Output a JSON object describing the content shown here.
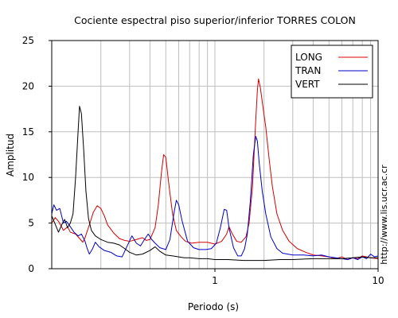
{
  "chart_data": {
    "type": "line",
    "title": "Cociente espectral piso superior/inferior  TORRES COLON",
    "xlabel": "Periodo (s)",
    "ylabel": "Amplitud",
    "x_scale": "log",
    "xlim": [
      0.1,
      10
    ],
    "ylim": [
      0,
      25
    ],
    "x_ticks": [
      {
        "value": 1,
        "label": "1"
      },
      {
        "value": 10,
        "label": "10"
      }
    ],
    "y_ticks": [
      {
        "value": 0,
        "label": "0"
      },
      {
        "value": 5,
        "label": "5"
      },
      {
        "value": 10,
        "label": "10"
      },
      {
        "value": 15,
        "label": "15"
      },
      {
        "value": 20,
        "label": "20"
      },
      {
        "value": 25,
        "label": "25"
      }
    ],
    "grid": true,
    "legend_position": "top-right",
    "side_note": "http://www.lis.ucr.ac.cr",
    "series": [
      {
        "name": "LONG",
        "color": "#d40000",
        "points": [
          [
            0.1,
            5.0
          ],
          [
            0.105,
            5.6
          ],
          [
            0.11,
            5.2
          ],
          [
            0.118,
            4.2
          ],
          [
            0.125,
            4.6
          ],
          [
            0.13,
            4.0
          ],
          [
            0.14,
            3.8
          ],
          [
            0.15,
            3.2
          ],
          [
            0.155,
            2.9
          ],
          [
            0.16,
            3.4
          ],
          [
            0.17,
            4.8
          ],
          [
            0.18,
            6.2
          ],
          [
            0.19,
            6.9
          ],
          [
            0.2,
            6.6
          ],
          [
            0.21,
            5.8
          ],
          [
            0.22,
            4.8
          ],
          [
            0.24,
            3.9
          ],
          [
            0.26,
            3.3
          ],
          [
            0.28,
            3.1
          ],
          [
            0.3,
            3.0
          ],
          [
            0.33,
            3.2
          ],
          [
            0.36,
            3.4
          ],
          [
            0.38,
            3.1
          ],
          [
            0.4,
            3.2
          ],
          [
            0.43,
            4.5
          ],
          [
            0.45,
            7.0
          ],
          [
            0.47,
            10.5
          ],
          [
            0.485,
            12.5
          ],
          [
            0.5,
            12.2
          ],
          [
            0.52,
            9.5
          ],
          [
            0.55,
            6.0
          ],
          [
            0.58,
            4.2
          ],
          [
            0.62,
            3.5
          ],
          [
            0.66,
            3.0
          ],
          [
            0.72,
            2.8
          ],
          [
            0.8,
            2.9
          ],
          [
            0.9,
            2.9
          ],
          [
            1.0,
            2.7
          ],
          [
            1.1,
            3.0
          ],
          [
            1.18,
            3.8
          ],
          [
            1.22,
            4.6
          ],
          [
            1.28,
            3.8
          ],
          [
            1.36,
            3.0
          ],
          [
            1.45,
            2.9
          ],
          [
            1.55,
            3.5
          ],
          [
            1.62,
            5.0
          ],
          [
            1.7,
            9.0
          ],
          [
            1.77,
            15.5
          ],
          [
            1.82,
            19.5
          ],
          [
            1.85,
            20.8
          ],
          [
            1.9,
            19.8
          ],
          [
            1.96,
            18.0
          ],
          [
            2.05,
            15.5
          ],
          [
            2.15,
            12.0
          ],
          [
            2.25,
            9.0
          ],
          [
            2.4,
            6.0
          ],
          [
            2.6,
            4.2
          ],
          [
            2.85,
            3.0
          ],
          [
            3.2,
            2.2
          ],
          [
            3.6,
            1.8
          ],
          [
            4.0,
            1.5
          ],
          [
            4.5,
            1.4
          ],
          [
            5.0,
            1.3
          ],
          [
            5.5,
            1.1
          ],
          [
            6.0,
            1.3
          ],
          [
            6.5,
            1.0
          ],
          [
            7.0,
            1.2
          ],
          [
            7.5,
            1.1
          ],
          [
            8.0,
            1.4
          ],
          [
            9.0,
            1.2
          ],
          [
            10.0,
            1.1
          ]
        ]
      },
      {
        "name": "TRAN",
        "color": "#0000c8",
        "points": [
          [
            0.1,
            6.0
          ],
          [
            0.103,
            7.0
          ],
          [
            0.107,
            6.4
          ],
          [
            0.112,
            6.6
          ],
          [
            0.118,
            5.0
          ],
          [
            0.123,
            5.2
          ],
          [
            0.13,
            4.6
          ],
          [
            0.137,
            4.0
          ],
          [
            0.145,
            3.6
          ],
          [
            0.152,
            3.8
          ],
          [
            0.16,
            3.0
          ],
          [
            0.165,
            2.2
          ],
          [
            0.17,
            1.6
          ],
          [
            0.178,
            2.2
          ],
          [
            0.185,
            2.9
          ],
          [
            0.195,
            2.4
          ],
          [
            0.21,
            2.0
          ],
          [
            0.23,
            1.8
          ],
          [
            0.25,
            1.4
          ],
          [
            0.27,
            1.3
          ],
          [
            0.29,
            2.5
          ],
          [
            0.31,
            3.6
          ],
          [
            0.33,
            2.8
          ],
          [
            0.35,
            2.5
          ],
          [
            0.37,
            3.2
          ],
          [
            0.39,
            3.8
          ],
          [
            0.41,
            3.2
          ],
          [
            0.43,
            2.8
          ],
          [
            0.46,
            2.3
          ],
          [
            0.5,
            2.1
          ],
          [
            0.53,
            3.2
          ],
          [
            0.56,
            6.0
          ],
          [
            0.58,
            7.5
          ],
          [
            0.6,
            7.0
          ],
          [
            0.63,
            5.2
          ],
          [
            0.68,
            3.0
          ],
          [
            0.74,
            2.3
          ],
          [
            0.8,
            2.1
          ],
          [
            0.88,
            2.1
          ],
          [
            0.95,
            2.2
          ],
          [
            1.02,
            2.8
          ],
          [
            1.08,
            4.5
          ],
          [
            1.14,
            6.5
          ],
          [
            1.18,
            6.4
          ],
          [
            1.22,
            4.5
          ],
          [
            1.3,
            2.3
          ],
          [
            1.38,
            1.4
          ],
          [
            1.45,
            1.4
          ],
          [
            1.52,
            2.2
          ],
          [
            1.58,
            3.8
          ],
          [
            1.65,
            7.5
          ],
          [
            1.72,
            12.5
          ],
          [
            1.78,
            14.5
          ],
          [
            1.82,
            14.0
          ],
          [
            1.87,
            11.5
          ],
          [
            1.95,
            8.5
          ],
          [
            2.05,
            6.0
          ],
          [
            2.2,
            3.5
          ],
          [
            2.4,
            2.2
          ],
          [
            2.6,
            1.7
          ],
          [
            3.0,
            1.5
          ],
          [
            3.5,
            1.5
          ],
          [
            4.0,
            1.4
          ],
          [
            4.5,
            1.5
          ],
          [
            5.0,
            1.3
          ],
          [
            5.5,
            1.2
          ],
          [
            6.0,
            1.1
          ],
          [
            6.5,
            1.0
          ],
          [
            7.0,
            1.2
          ],
          [
            7.5,
            1.0
          ],
          [
            8.0,
            1.3
          ],
          [
            8.5,
            1.1
          ],
          [
            9.0,
            1.6
          ],
          [
            9.5,
            1.3
          ],
          [
            10.0,
            1.4
          ]
        ]
      },
      {
        "name": "VERT",
        "color": "#000000",
        "points": [
          [
            0.1,
            5.8
          ],
          [
            0.11,
            4.0
          ],
          [
            0.115,
            4.8
          ],
          [
            0.12,
            5.4
          ],
          [
            0.125,
            4.5
          ],
          [
            0.13,
            5.0
          ],
          [
            0.135,
            6.0
          ],
          [
            0.14,
            10.0
          ],
          [
            0.145,
            15.0
          ],
          [
            0.148,
            17.8
          ],
          [
            0.152,
            17.0
          ],
          [
            0.157,
            13.0
          ],
          [
            0.162,
            8.5
          ],
          [
            0.168,
            5.5
          ],
          [
            0.175,
            4.2
          ],
          [
            0.185,
            3.6
          ],
          [
            0.2,
            3.2
          ],
          [
            0.22,
            2.9
          ],
          [
            0.24,
            2.8
          ],
          [
            0.26,
            2.6
          ],
          [
            0.28,
            2.2
          ],
          [
            0.3,
            1.8
          ],
          [
            0.33,
            1.5
          ],
          [
            0.36,
            1.6
          ],
          [
            0.4,
            2.0
          ],
          [
            0.43,
            2.4
          ],
          [
            0.46,
            1.9
          ],
          [
            0.5,
            1.5
          ],
          [
            0.55,
            1.4
          ],
          [
            0.6,
            1.3
          ],
          [
            0.65,
            1.2
          ],
          [
            0.7,
            1.2
          ],
          [
            0.8,
            1.1
          ],
          [
            0.9,
            1.1
          ],
          [
            1.0,
            1.0
          ],
          [
            1.2,
            1.0
          ],
          [
            1.5,
            0.9
          ],
          [
            2.0,
            0.9
          ],
          [
            2.5,
            1.0
          ],
          [
            3.0,
            1.0
          ],
          [
            4.0,
            1.1
          ],
          [
            5.0,
            1.1
          ],
          [
            6.0,
            1.1
          ],
          [
            7.0,
            1.2
          ],
          [
            8.0,
            1.3
          ],
          [
            9.0,
            1.2
          ],
          [
            10.0,
            1.2
          ]
        ]
      }
    ]
  }
}
